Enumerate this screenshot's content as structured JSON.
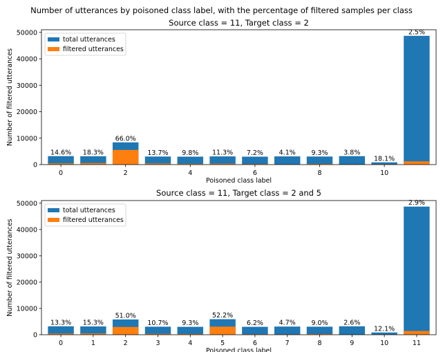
{
  "figure": {
    "suptitle": "Number of utterances by poisoned class label, with the percentage of filtered samples per class"
  },
  "colors": {
    "total": "#1f77b4",
    "filtered": "#ff7f0e"
  },
  "chart_data": [
    {
      "type": "bar",
      "title": "Source class = 11, Target class = 2",
      "xlabel": "Poisoned class label",
      "ylabel": "Number of filtered utterances",
      "categories": [
        "0",
        "1",
        "2",
        "3",
        "4",
        "5",
        "6",
        "7",
        "8",
        "9",
        "10",
        "11"
      ],
      "x_tick_labels": [
        "0",
        "",
        "2",
        "",
        "4",
        "",
        "6",
        "",
        "8",
        "",
        "10",
        ""
      ],
      "ylim": [
        0,
        51000
      ],
      "y_ticks": [
        0,
        10000,
        20000,
        30000,
        40000,
        50000
      ],
      "legend": {
        "placement": "upper-left",
        "entries": [
          "total utterances",
          "filtered utterances"
        ]
      },
      "grid": false,
      "series": [
        {
          "name": "total utterances",
          "values": [
            3200,
            3150,
            8400,
            3050,
            3000,
            3100,
            3000,
            3100,
            3050,
            3200,
            850,
            48700
          ]
        },
        {
          "name": "filtered utterances",
          "values": [
            470,
            580,
            5540,
            420,
            290,
            350,
            220,
            130,
            280,
            120,
            150,
            1220
          ]
        }
      ],
      "percent_labels": [
        "14.6%",
        "18.3%",
        "66.0%",
        "13.7%",
        "9.8%",
        "11.3%",
        "7.2%",
        "4.1%",
        "9.3%",
        "3.8%",
        "18.1%",
        "2.5%"
      ]
    },
    {
      "type": "bar",
      "title": "Source class = 11, Target class = 2 and 5",
      "xlabel": "Poisoned class label",
      "ylabel": "Number of filtered utterances",
      "categories": [
        "0",
        "1",
        "2",
        "3",
        "4",
        "5",
        "6",
        "7",
        "8",
        "9",
        "10",
        "11"
      ],
      "x_tick_labels": [
        "0",
        "1",
        "2",
        "3",
        "4",
        "5",
        "6",
        "7",
        "8",
        "9",
        "10",
        "11"
      ],
      "ylim": [
        0,
        51000
      ],
      "y_ticks": [
        0,
        10000,
        20000,
        30000,
        40000,
        50000
      ],
      "legend": {
        "placement": "upper-left",
        "entries": [
          "total utterances",
          "filtered utterances"
        ]
      },
      "grid": false,
      "series": [
        {
          "name": "total utterances",
          "values": [
            3200,
            3150,
            5800,
            3050,
            3000,
            5900,
            3000,
            3100,
            3050,
            3200,
            850,
            48700
          ]
        },
        {
          "name": "filtered utterances",
          "values": [
            430,
            480,
            2960,
            330,
            280,
            3080,
            190,
            150,
            270,
            80,
            100,
            1410
          ]
        }
      ],
      "percent_labels": [
        "13.3%",
        "15.3%",
        "51.0%",
        "10.7%",
        "9.3%",
        "52.2%",
        "6.2%",
        "4.7%",
        "9.0%",
        "2.6%",
        "12.1%",
        "2.9%"
      ]
    }
  ]
}
